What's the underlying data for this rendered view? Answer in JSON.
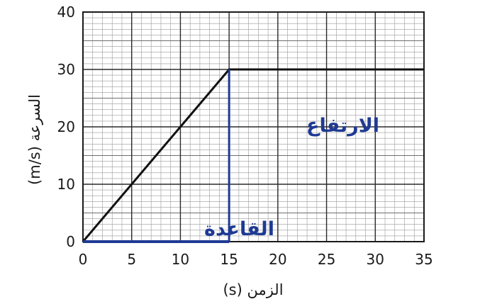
{
  "chart_data": {
    "type": "line",
    "xlabel": "الزمن (s)",
    "ylabel": "السرعة (m/s)",
    "xlim": [
      0,
      35
    ],
    "ylim": [
      0,
      40
    ],
    "xticks": [
      "0",
      "5",
      "10",
      "15",
      "20",
      "25",
      "30",
      "35"
    ],
    "yticks": [
      "0",
      "10",
      "20",
      "30",
      "40"
    ],
    "grid": true,
    "series": [
      {
        "x": [
          0,
          15,
          35
        ],
        "y": [
          0,
          30,
          30
        ],
        "color": "#111111"
      }
    ],
    "annotations": {
      "base_label": "القاعدة",
      "height_label": "الارتفاع",
      "base": {
        "x": [
          0,
          15
        ],
        "y": [
          0,
          0
        ]
      },
      "height": {
        "x": [
          15,
          15
        ],
        "y": [
          0,
          30
        ]
      },
      "color": "#1f3a93"
    }
  }
}
